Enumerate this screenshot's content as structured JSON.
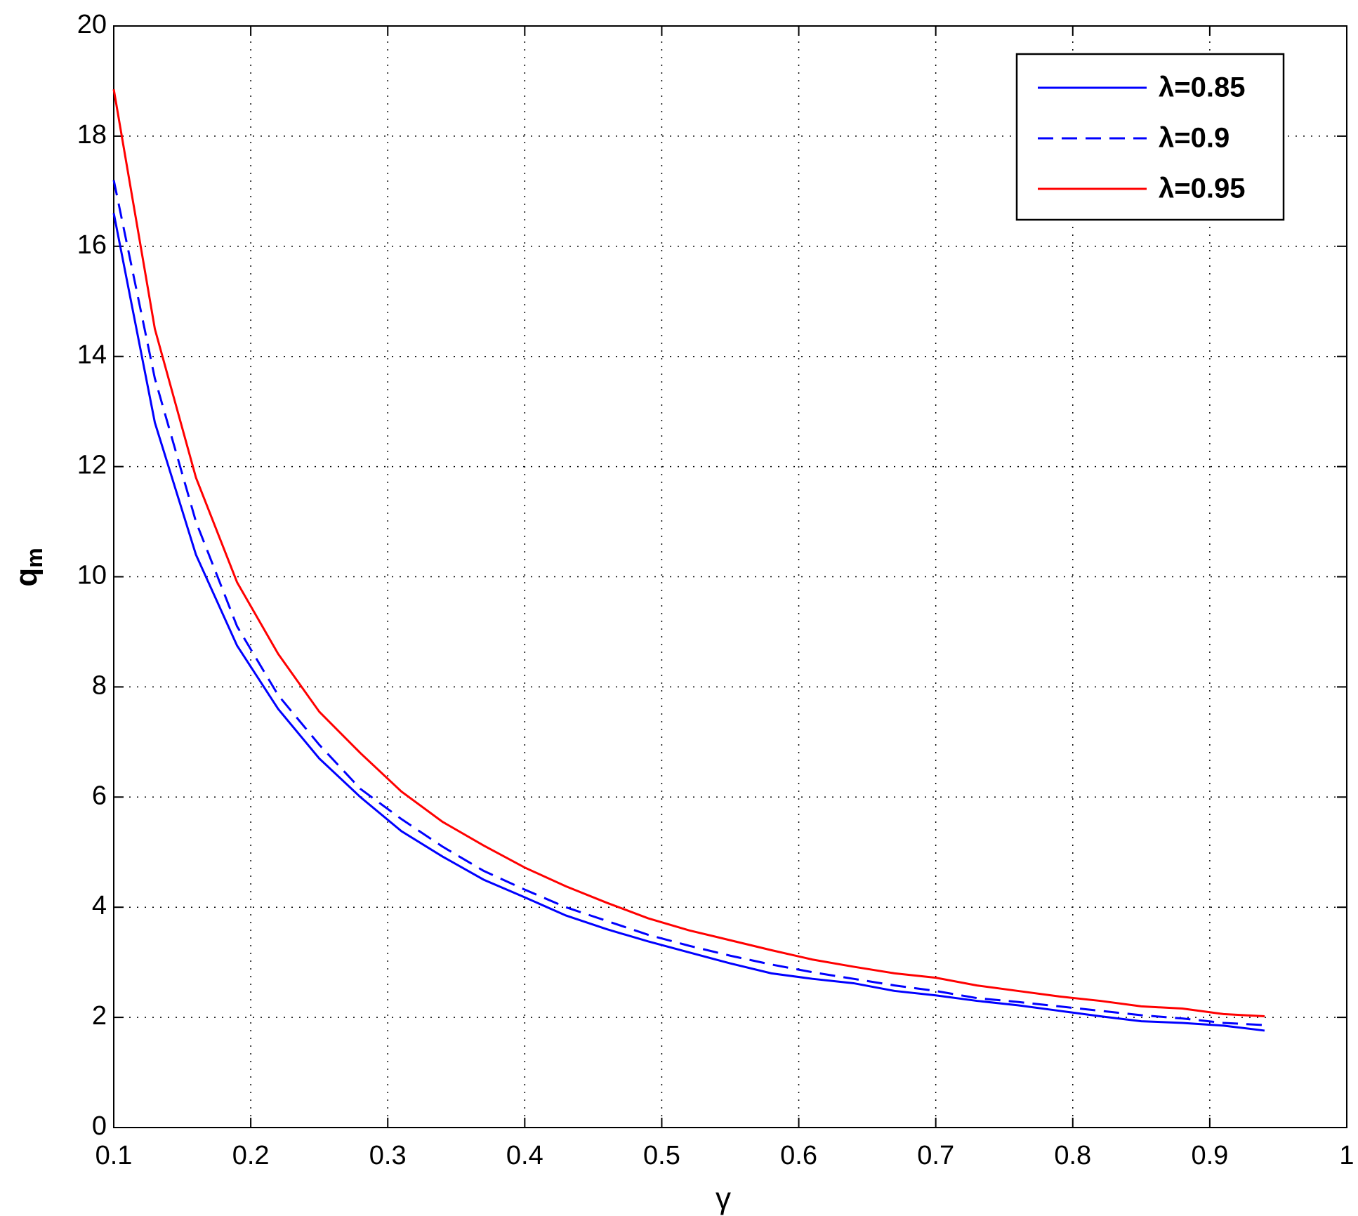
{
  "chart_data": {
    "type": "line",
    "xlabel": "γ",
    "ylabel": "q",
    "ylabel_subscript": "m",
    "x": [
      0.1,
      0.13,
      0.16,
      0.19,
      0.22,
      0.25,
      0.28,
      0.31,
      0.34,
      0.37,
      0.4,
      0.43,
      0.46,
      0.49,
      0.52,
      0.55,
      0.58,
      0.61,
      0.64,
      0.67,
      0.7,
      0.73,
      0.76,
      0.79,
      0.82,
      0.85,
      0.88,
      0.91,
      0.94
    ],
    "series": [
      {
        "name": "λ=0.85",
        "color": "#0000ff",
        "dash": "solid",
        "values": [
          16.6,
          12.8,
          10.4,
          8.75,
          7.6,
          6.7,
          6.0,
          5.38,
          4.92,
          4.5,
          4.18,
          3.85,
          3.6,
          3.38,
          3.18,
          2.98,
          2.8,
          2.7,
          2.62,
          2.48,
          2.4,
          2.3,
          2.22,
          2.12,
          2.02,
          1.93,
          1.9,
          1.85,
          1.76
        ]
      },
      {
        "name": "λ=0.9",
        "color": "#0000ff",
        "dash": "dashed",
        "values": [
          17.2,
          13.6,
          11.0,
          9.1,
          7.85,
          6.95,
          6.15,
          5.6,
          5.1,
          4.66,
          4.32,
          4.0,
          3.75,
          3.5,
          3.3,
          3.12,
          2.96,
          2.82,
          2.7,
          2.58,
          2.48,
          2.35,
          2.28,
          2.2,
          2.12,
          2.04,
          1.98,
          1.9,
          1.86
        ]
      },
      {
        "name": "λ=0.95",
        "color": "#ff0000",
        "dash": "solid",
        "values": [
          18.85,
          14.5,
          11.8,
          9.9,
          8.6,
          7.55,
          6.8,
          6.1,
          5.55,
          5.12,
          4.72,
          4.38,
          4.08,
          3.8,
          3.58,
          3.4,
          3.22,
          3.05,
          2.92,
          2.8,
          2.72,
          2.58,
          2.48,
          2.38,
          2.3,
          2.2,
          2.16,
          2.06,
          2.02
        ]
      }
    ],
    "xlim": [
      0.1,
      1
    ],
    "xticks": [
      0.1,
      0.2,
      0.3,
      0.4,
      0.5,
      0.6,
      0.7,
      0.8,
      0.9,
      1
    ],
    "ylim": [
      0,
      20
    ],
    "yticks": [
      0,
      2,
      4,
      6,
      8,
      10,
      12,
      14,
      16,
      18,
      20
    ],
    "grid": true,
    "legend": "upper right"
  }
}
